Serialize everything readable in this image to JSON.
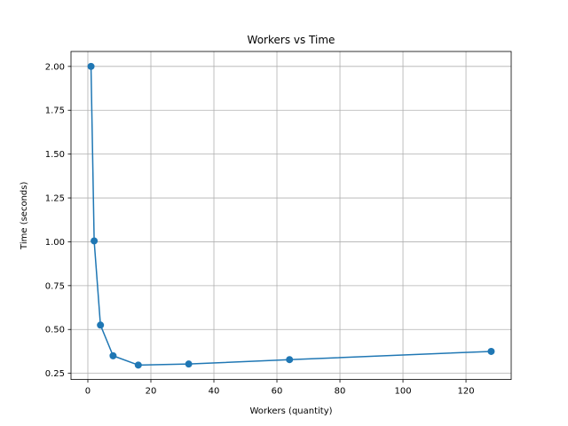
{
  "chart_data": {
    "type": "line",
    "title": "Workers vs Time",
    "xlabel": "Workers (quantity)",
    "ylabel": "Time (seconds)",
    "x": [
      1,
      2,
      4,
      8,
      16,
      32,
      64,
      128
    ],
    "series": [
      {
        "values": [
          2.0,
          1.005,
          0.525,
          0.35,
          0.297,
          0.303,
          0.328,
          0.375
        ],
        "color": "#1f77b4",
        "marker": "circle"
      }
    ],
    "xlim": [
      -5.35,
      134.35
    ],
    "ylim": [
      0.2148,
      2.0852
    ],
    "xticks": [
      0,
      20,
      40,
      60,
      80,
      100,
      120
    ],
    "xtick_labels": [
      "0",
      "20",
      "40",
      "60",
      "80",
      "100",
      "120"
    ],
    "yticks": [
      0.25,
      0.5,
      0.75,
      1.0,
      1.25,
      1.5,
      1.75,
      2.0
    ],
    "ytick_labels": [
      "0.25",
      "0.50",
      "0.75",
      "1.00",
      "1.25",
      "1.50",
      "1.75",
      "2.00"
    ],
    "grid": true
  }
}
